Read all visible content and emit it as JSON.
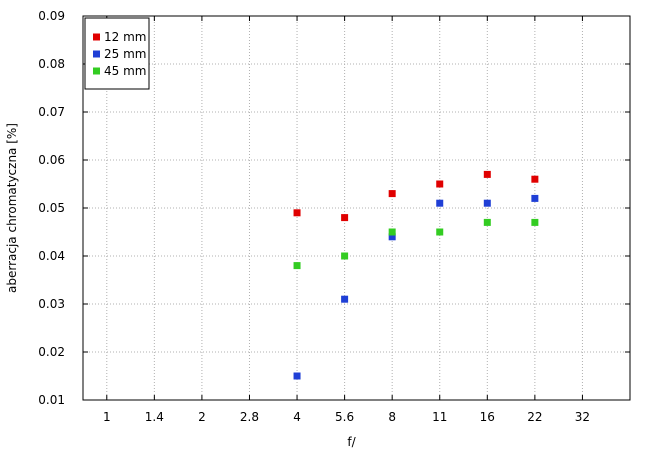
{
  "chart_data": {
    "type": "scatter",
    "title": "",
    "xlabel": "f/",
    "ylabel": "aberracja chromatyczna [%]",
    "x_ticks": [
      "1",
      "1.4",
      "2",
      "2.8",
      "4",
      "5.6",
      "8",
      "11",
      "16",
      "22",
      "32"
    ],
    "y_ticks": [
      "0.01",
      "0.02",
      "0.03",
      "0.04",
      "0.05",
      "0.06",
      "0.07",
      "0.08",
      "0.09"
    ],
    "ylim": [
      0.01,
      0.09
    ],
    "grid": true,
    "legend_position": "top-left",
    "series": [
      {
        "name": "12 mm",
        "color": "#e00000",
        "x": [
          "4",
          "5.6",
          "8",
          "11",
          "16",
          "22"
        ],
        "y": [
          0.049,
          0.048,
          0.053,
          0.055,
          0.057,
          0.056
        ]
      },
      {
        "name": "25 mm",
        "color": "#1f3fd6",
        "x": [
          "4",
          "5.6",
          "8",
          "11",
          "16",
          "22"
        ],
        "y": [
          0.015,
          0.031,
          0.044,
          0.051,
          0.051,
          0.052
        ]
      },
      {
        "name": "45 mm",
        "color": "#33cc22",
        "x": [
          "4",
          "5.6",
          "8",
          "11",
          "16",
          "22"
        ],
        "y": [
          0.038,
          0.04,
          0.045,
          0.045,
          0.047,
          0.047
        ]
      }
    ]
  }
}
